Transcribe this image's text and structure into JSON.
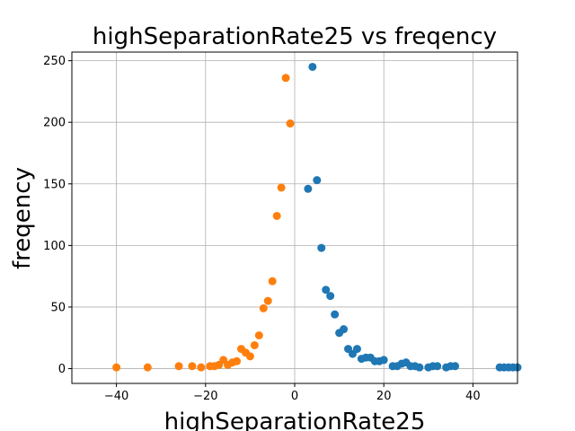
{
  "chart_data": {
    "type": "scatter",
    "title": "highSeparationRate25 vs freqency",
    "xlabel": "highSeparationRate25",
    "ylabel": "freqency",
    "xlim": [
      -50,
      50
    ],
    "ylim": [
      -12,
      257
    ],
    "x_ticks": [
      -40,
      -20,
      0,
      20,
      40
    ],
    "y_ticks": [
      0,
      50,
      100,
      150,
      200,
      250
    ],
    "grid": true,
    "series": [
      {
        "color": "#1f77b4",
        "points": [
          [
            3,
            146
          ],
          [
            4,
            245
          ],
          [
            5,
            153
          ],
          [
            6,
            98
          ],
          [
            7,
            64
          ],
          [
            8,
            59
          ],
          [
            9,
            44
          ],
          [
            10,
            29
          ],
          [
            11,
            32
          ],
          [
            12,
            16
          ],
          [
            13,
            12
          ],
          [
            14,
            16
          ],
          [
            15,
            8
          ],
          [
            16,
            9
          ],
          [
            17,
            9
          ],
          [
            18,
            6
          ],
          [
            19,
            6
          ],
          [
            20,
            7
          ],
          [
            22,
            2
          ],
          [
            23,
            2
          ],
          [
            24,
            4
          ],
          [
            25,
            5
          ],
          [
            26,
            2
          ],
          [
            27,
            2
          ],
          [
            28,
            1
          ],
          [
            30,
            1
          ],
          [
            31,
            2
          ],
          [
            32,
            2
          ],
          [
            34,
            1
          ],
          [
            35,
            2
          ],
          [
            36,
            2
          ],
          [
            46,
            1
          ],
          [
            47,
            1
          ],
          [
            48,
            1
          ],
          [
            49,
            1
          ],
          [
            50,
            1
          ]
        ]
      },
      {
        "color": "#ff7f0e",
        "points": [
          [
            -40,
            1
          ],
          [
            -33,
            1
          ],
          [
            -26,
            2
          ],
          [
            -23,
            2
          ],
          [
            -21,
            1
          ],
          [
            -19,
            2
          ],
          [
            -18,
            2
          ],
          [
            -17,
            3
          ],
          [
            -16,
            7
          ],
          [
            -15,
            3
          ],
          [
            -14,
            5
          ],
          [
            -13,
            6
          ],
          [
            -12,
            16
          ],
          [
            -11,
            13
          ],
          [
            -10,
            10
          ],
          [
            -9,
            19
          ],
          [
            -8,
            27
          ],
          [
            -7,
            49
          ],
          [
            -6,
            55
          ],
          [
            -5,
            71
          ],
          [
            -4,
            124
          ],
          [
            -3,
            147
          ],
          [
            -2,
            236
          ],
          [
            -1,
            199
          ]
        ]
      }
    ]
  }
}
